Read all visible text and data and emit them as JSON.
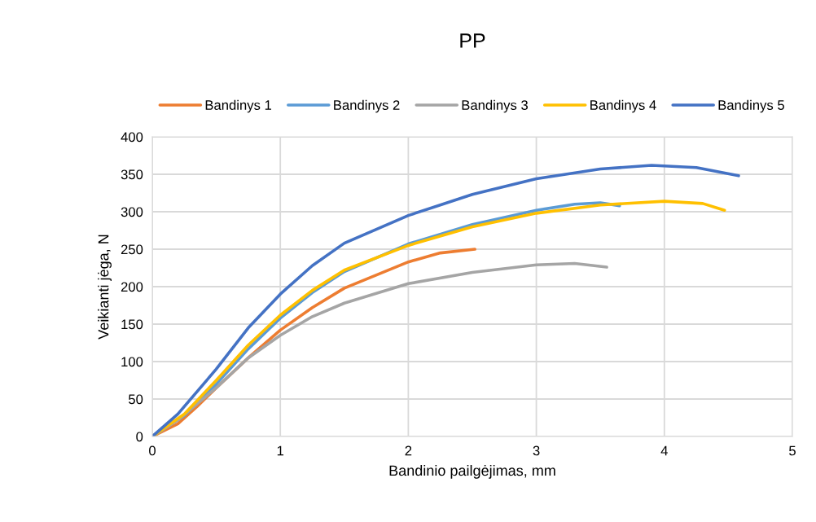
{
  "chart_data": {
    "type": "line",
    "title": "PP",
    "xlabel": "Bandinio pailgėjimas, mm",
    "ylabel": "Veikianti jėga, N",
    "xlim": [
      0,
      5
    ],
    "xticks": [
      0,
      1,
      2,
      3,
      4,
      5
    ],
    "ylim": [
      0,
      400
    ],
    "yticks": [
      0,
      50,
      100,
      150,
      200,
      250,
      300,
      350,
      400
    ],
    "grid": true,
    "legend": "top",
    "marker": "none",
    "line_style": "solid",
    "series": [
      {
        "name": "Bandinys 1",
        "color": "#ed7d31",
        "x": [
          0,
          0.2,
          0.35,
          0.5,
          0.75,
          1,
          1.25,
          1.5,
          2,
          2.25,
          2.52
        ],
        "values": [
          0,
          17,
          40,
          65,
          105,
          142,
          172,
          198,
          233,
          245,
          250
        ]
      },
      {
        "name": "Bandinys 2",
        "color": "#5b9bd5",
        "x": [
          0,
          0.25,
          0.5,
          0.75,
          1,
          1.25,
          1.5,
          2,
          2.5,
          3,
          3.3,
          3.5,
          3.65
        ],
        "values": [
          0,
          28,
          70,
          117,
          158,
          192,
          220,
          257,
          283,
          302,
          310,
          312,
          308
        ]
      },
      {
        "name": "Bandinys 3",
        "color": "#a5a5a5",
        "x": [
          0,
          0.2,
          0.5,
          0.75,
          1,
          1.25,
          1.5,
          2,
          2.5,
          3,
          3.3,
          3.55
        ],
        "values": [
          0,
          22,
          65,
          105,
          135,
          160,
          178,
          204,
          219,
          229,
          231,
          226
        ]
      },
      {
        "name": "Bandinys 4",
        "color": "#ffc000",
        "x": [
          0,
          0.25,
          0.5,
          0.75,
          1,
          1.25,
          1.5,
          2,
          2.5,
          3,
          3.5,
          4,
          4.3,
          4.47
        ],
        "values": [
          0,
          30,
          75,
          122,
          162,
          195,
          222,
          255,
          280,
          298,
          309,
          314,
          311,
          302
        ]
      },
      {
        "name": "Bandinys 5",
        "color": "#4472c4",
        "x": [
          0,
          0.2,
          0.5,
          0.75,
          1,
          1.25,
          1.5,
          2,
          2.5,
          3,
          3.5,
          3.9,
          4.25,
          4.58
        ],
        "values": [
          0,
          30,
          90,
          145,
          190,
          228,
          258,
          295,
          323,
          344,
          357,
          362,
          359,
          348
        ]
      }
    ]
  }
}
